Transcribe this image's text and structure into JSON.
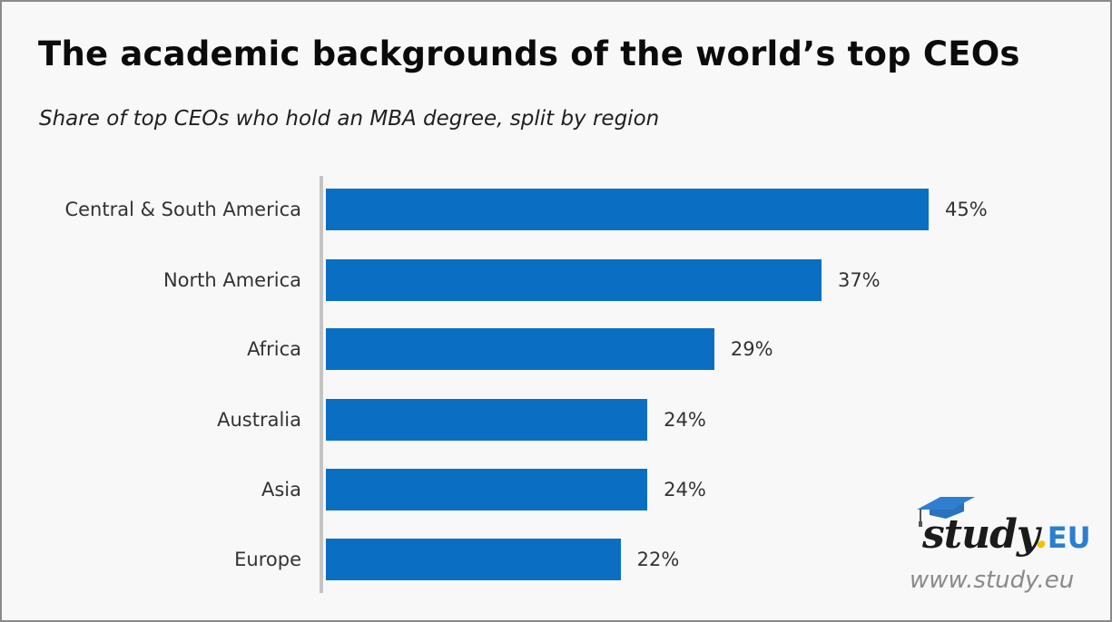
{
  "chart_data": {
    "type": "bar",
    "orientation": "horizontal",
    "title": "The academic backgrounds of the world’s top CEOs",
    "subtitle": "Share of top CEOs who hold an MBA degree, split by region",
    "categories": [
      "Central & South America",
      "North America",
      "Africa",
      "Australia",
      "Asia",
      "Europe"
    ],
    "values": [
      45,
      37,
      29,
      24,
      24,
      22
    ],
    "value_labels": [
      "45%",
      "37%",
      "29%",
      "24%",
      "24%",
      "22%"
    ],
    "unit": "%",
    "xlabel": "",
    "ylabel": "",
    "xlim": [
      0,
      45
    ],
    "grid": false,
    "legend": null,
    "bar_color": "#0a6fc2",
    "axis_color": "#c4c4c4"
  },
  "header": {
    "title": "The academic backgrounds of the world’s top CEOs",
    "subtitle": "Share of top CEOs who hold an MBA degree, split by region"
  },
  "branding": {
    "logo_word": "study",
    "logo_dot": ".",
    "logo_suffix": "EU",
    "url": "www.study.eu",
    "icon": "graduation-cap-icon",
    "colors": {
      "cap": "#2f7fd1",
      "dot": "#f2c200",
      "suffix": "#2b7fd0",
      "word": "#1b1b1b",
      "url": "#8a8a8a"
    }
  }
}
